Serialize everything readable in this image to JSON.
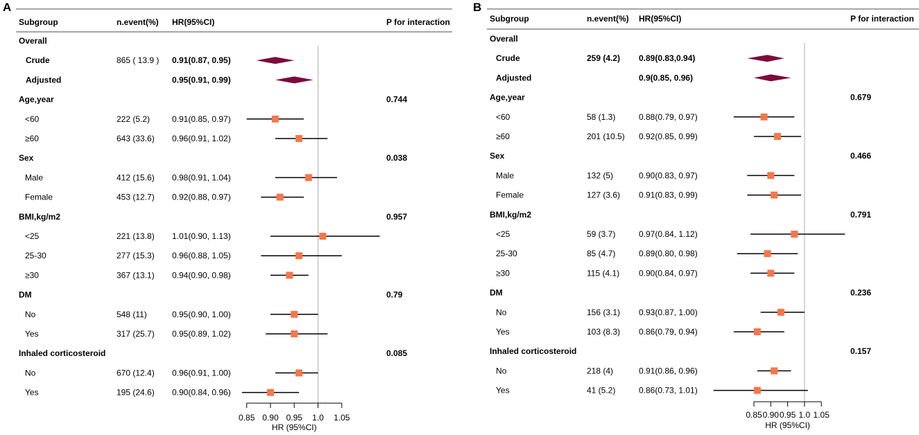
{
  "colors": {
    "square": "#f4774a",
    "diamond": "#7c0a3e",
    "line": "#000000",
    "rule": "#888888",
    "refline": "#bbbbbb"
  },
  "chart_data": [
    {
      "type": "forest",
      "panel_label": "A",
      "headers": {
        "subgroup": "Subgroup",
        "nevent": "n.event(%)",
        "hr": "HR(95%CI)",
        "p": "P for interaction"
      },
      "xlabel": "HR (95%CI)",
      "xlim": [
        0.85,
        1.05
      ],
      "ticks": [
        0.85,
        0.9,
        0.95,
        1.0,
        1.05
      ],
      "tick_labels": [
        "0.85",
        "0.90",
        "0.95",
        "1.0",
        "1.05"
      ],
      "reference_line": 1.0,
      "rows": [
        {
          "label": "Overall",
          "kind": "header",
          "nevent": "",
          "hr_text": "",
          "p": ""
        },
        {
          "label": "Crude",
          "kind": "overall",
          "nevent": "865 ( 13.9 )",
          "hr_text": "0.91(0.87, 0.95)",
          "p": "",
          "est": 0.91,
          "lo": 0.87,
          "hi": 0.95
        },
        {
          "label": "Adjusted",
          "kind": "overall",
          "nevent": "",
          "hr_text": "0.95(0.91, 0.99)",
          "p": "",
          "est": 0.95,
          "lo": 0.91,
          "hi": 0.99
        },
        {
          "label": "Age,year",
          "kind": "header",
          "nevent": "",
          "hr_text": "",
          "p": "0.744"
        },
        {
          "label": "<60",
          "kind": "sub",
          "nevent": "222 (5.2)",
          "hr_text": "0.91(0.85, 0.97)",
          "p": "",
          "est": 0.91,
          "lo": 0.85,
          "hi": 0.97
        },
        {
          "label": "≥60",
          "kind": "sub",
          "nevent": "643 (33.6)",
          "hr_text": "0.96(0.91, 1.02)",
          "p": "",
          "est": 0.96,
          "lo": 0.91,
          "hi": 1.02
        },
        {
          "label": "Sex",
          "kind": "header",
          "nevent": "",
          "hr_text": "",
          "p": "0.038"
        },
        {
          "label": "Male",
          "kind": "sub",
          "nevent": "412 (15.6)",
          "hr_text": "0.98(0.91, 1.04)",
          "p": "",
          "est": 0.98,
          "lo": 0.91,
          "hi": 1.04
        },
        {
          "label": "Female",
          "kind": "sub",
          "nevent": "453 (12.7)",
          "hr_text": "0.92(0.88, 0.97)",
          "p": "",
          "est": 0.92,
          "lo": 0.88,
          "hi": 0.97
        },
        {
          "label": "BMI,kg/m2",
          "kind": "header",
          "nevent": "",
          "hr_text": "",
          "p": "0.957"
        },
        {
          "label": "<25",
          "kind": "sub",
          "nevent": "221 (13.8)",
          "hr_text": "1.01(0.90, 1.13)",
          "p": "",
          "est": 1.01,
          "lo": 0.9,
          "hi": 1.13
        },
        {
          "label": "25-30",
          "kind": "sub",
          "nevent": "277 (15.3)",
          "hr_text": "0.96(0.88, 1.05)",
          "p": "",
          "est": 0.96,
          "lo": 0.88,
          "hi": 1.05
        },
        {
          "label": "≥30",
          "kind": "sub",
          "nevent": "367 (13.1)",
          "hr_text": "0.94(0.90, 0.98)",
          "p": "",
          "est": 0.94,
          "lo": 0.9,
          "hi": 0.98
        },
        {
          "label": "DM",
          "kind": "header",
          "nevent": "",
          "hr_text": "",
          "p": "0.79"
        },
        {
          "label": "No",
          "kind": "sub",
          "nevent": "548 (11)",
          "hr_text": "0.95(0.90, 1.00)",
          "p": "",
          "est": 0.95,
          "lo": 0.9,
          "hi": 1.0
        },
        {
          "label": "Yes",
          "kind": "sub",
          "nevent": "317 (25.7)",
          "hr_text": "0.95(0.89, 1.02)",
          "p": "",
          "est": 0.95,
          "lo": 0.89,
          "hi": 1.02
        },
        {
          "label": "Inhaled corticosteroid",
          "kind": "header",
          "nevent": "",
          "hr_text": "",
          "p": "0.085"
        },
        {
          "label": "No",
          "kind": "sub",
          "nevent": "670 (12.4)",
          "hr_text": "0.96(0.91, 1.00)",
          "p": "",
          "est": 0.96,
          "lo": 0.91,
          "hi": 1.0
        },
        {
          "label": "Yes",
          "kind": "sub",
          "nevent": "195 (24.6)",
          "hr_text": "0.90(0.84, 0.96)",
          "p": "",
          "est": 0.9,
          "lo": 0.84,
          "hi": 0.96
        }
      ]
    },
    {
      "type": "forest",
      "panel_label": "B",
      "headers": {
        "subgroup": "Subgroup",
        "nevent": "n.event(%)",
        "hr": "HR(95%CI)",
        "p": "P for interaction"
      },
      "xlabel": "HR (95%CI)",
      "xlim": [
        0.85,
        1.05
      ],
      "ticks": [
        0.85,
        0.9,
        0.95,
        1.0,
        1.05
      ],
      "tick_labels": [
        "0.85",
        "0.90",
        "0.95",
        "1.0",
        "1.05"
      ],
      "reference_line": 1.0,
      "rows": [
        {
          "label": "Overall",
          "kind": "header",
          "nevent": "",
          "hr_text": "",
          "p": ""
        },
        {
          "label": "Crude",
          "kind": "overall",
          "nevent": "259 (4.2)",
          "hr_text": "0.89(0.83,0.94)",
          "p": "",
          "est": 0.89,
          "lo": 0.83,
          "hi": 0.94
        },
        {
          "label": "Adjusted",
          "kind": "overall",
          "nevent": "",
          "hr_text": "0.9(0.85, 0.96)",
          "p": "",
          "est": 0.9,
          "lo": 0.85,
          "hi": 0.96
        },
        {
          "label": "Age,year",
          "kind": "header",
          "nevent": "",
          "hr_text": "",
          "p": "0.679"
        },
        {
          "label": "<60",
          "kind": "sub",
          "nevent": "58 (1.3)",
          "hr_text": "0.88(0.79, 0.97)",
          "p": "",
          "est": 0.88,
          "lo": 0.79,
          "hi": 0.97
        },
        {
          "label": "≥60",
          "kind": "sub",
          "nevent": "201 (10.5)",
          "hr_text": "0.92(0.85, 0.99)",
          "p": "",
          "est": 0.92,
          "lo": 0.85,
          "hi": 0.99
        },
        {
          "label": "Sex",
          "kind": "header",
          "nevent": "",
          "hr_text": "",
          "p": "0.466"
        },
        {
          "label": "Male",
          "kind": "sub",
          "nevent": "132 (5)",
          "hr_text": "0.90(0.83, 0.97)",
          "p": "",
          "est": 0.9,
          "lo": 0.83,
          "hi": 0.97
        },
        {
          "label": "Female",
          "kind": "sub",
          "nevent": "127 (3.6)",
          "hr_text": "0.91(0.83, 0.99)",
          "p": "",
          "est": 0.91,
          "lo": 0.83,
          "hi": 0.99
        },
        {
          "label": "BMI,kg/m2",
          "kind": "header",
          "nevent": "",
          "hr_text": "",
          "p": "0.791"
        },
        {
          "label": "<25",
          "kind": "sub",
          "nevent": "59 (3.7)",
          "hr_text": "0.97(0.84, 1.12)",
          "p": "",
          "est": 0.97,
          "lo": 0.84,
          "hi": 1.12
        },
        {
          "label": "25-30",
          "kind": "sub",
          "nevent": "85 (4.7)",
          "hr_text": "0.89(0.80, 0.98)",
          "p": "",
          "est": 0.89,
          "lo": 0.8,
          "hi": 0.98
        },
        {
          "label": "≥30",
          "kind": "sub",
          "nevent": "115 (4.1)",
          "hr_text": "0.90(0.84, 0.97)",
          "p": "",
          "est": 0.9,
          "lo": 0.84,
          "hi": 0.97
        },
        {
          "label": "DM",
          "kind": "header",
          "nevent": "",
          "hr_text": "",
          "p": "0.236"
        },
        {
          "label": "No",
          "kind": "sub",
          "nevent": "156 (3.1)",
          "hr_text": "0.93(0.87, 1.00)",
          "p": "",
          "est": 0.93,
          "lo": 0.87,
          "hi": 1.0
        },
        {
          "label": "Yes",
          "kind": "sub",
          "nevent": "103 (8.3)",
          "hr_text": "0.86(0.79, 0.94)",
          "p": "",
          "est": 0.86,
          "lo": 0.79,
          "hi": 0.94
        },
        {
          "label": "Inhaled corticosteroid",
          "kind": "header",
          "nevent": "",
          "hr_text": "",
          "p": "0.157"
        },
        {
          "label": "No",
          "kind": "sub",
          "nevent": "218 (4)",
          "hr_text": "0.91(0.86, 0.96)",
          "p": "",
          "est": 0.91,
          "lo": 0.86,
          "hi": 0.96
        },
        {
          "label": "Yes",
          "kind": "sub",
          "nevent": "41 (5.2)",
          "hr_text": "0.86(0.73, 1.01)",
          "p": "",
          "est": 0.86,
          "lo": 0.73,
          "hi": 1.01
        }
      ]
    }
  ]
}
